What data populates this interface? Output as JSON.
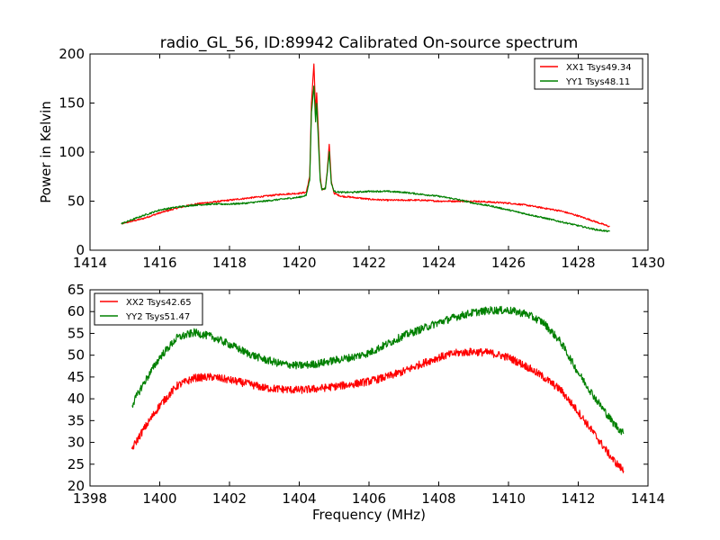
{
  "figure": {
    "title": "radio_GL_56, ID:89942 Calibrated On-source spectrum"
  },
  "colors": {
    "series1": "#ff0000",
    "series2": "#008000",
    "axes": "#000000",
    "background": "#ffffff"
  },
  "chart_data": [
    {
      "type": "line",
      "title": "radio_GL_56, ID:89942 Calibrated On-source spectrum",
      "xlabel": "",
      "ylabel": "Power in Kelvin",
      "xlim": [
        1414,
        1430
      ],
      "ylim": [
        0,
        200
      ],
      "xticks": [
        1414,
        1416,
        1418,
        1420,
        1422,
        1424,
        1426,
        1428,
        1430
      ],
      "yticks": [
        0,
        50,
        100,
        150,
        200
      ],
      "grid": false,
      "legend_position": "top-right",
      "series": [
        {
          "name": "XX1 Tsys49.34",
          "color": "#ff0000",
          "x": [
            1414.9,
            1415.5,
            1416,
            1416.5,
            1417,
            1417.5,
            1418,
            1418.5,
            1419,
            1419.5,
            1420,
            1420.2,
            1420.3,
            1420.35,
            1420.42,
            1420.47,
            1420.5,
            1420.55,
            1420.6,
            1420.65,
            1420.75,
            1420.8,
            1420.86,
            1420.92,
            1421,
            1421.2,
            1421.5,
            1422,
            1422.5,
            1423,
            1423.5,
            1424,
            1424.5,
            1425,
            1425.5,
            1426,
            1426.5,
            1427,
            1427.5,
            1428,
            1428.5,
            1428.9
          ],
          "y": [
            27,
            32,
            38,
            43,
            47,
            49,
            51,
            53,
            55,
            57,
            58,
            59,
            75,
            150,
            190,
            140,
            160,
            120,
            75,
            62,
            63,
            80,
            108,
            70,
            58,
            55,
            54,
            52,
            51,
            51,
            51,
            50,
            50,
            50,
            49,
            48,
            46,
            43,
            40,
            35,
            29,
            24
          ]
        },
        {
          "name": "YY1 Tsys48.11",
          "color": "#008000",
          "x": [
            1414.9,
            1415.5,
            1416,
            1416.5,
            1417,
            1417.5,
            1418,
            1418.5,
            1419,
            1419.5,
            1420,
            1420.2,
            1420.3,
            1420.35,
            1420.42,
            1420.47,
            1420.5,
            1420.55,
            1420.6,
            1420.65,
            1420.75,
            1420.8,
            1420.86,
            1420.92,
            1421,
            1421.2,
            1421.5,
            1422,
            1422.5,
            1423,
            1423.5,
            1424,
            1424.5,
            1425,
            1425.5,
            1426,
            1426.5,
            1427,
            1427.5,
            1428,
            1428.5,
            1428.9
          ],
          "y": [
            27,
            35,
            41,
            44,
            46,
            47,
            47,
            48,
            50,
            52,
            54,
            56,
            72,
            140,
            168,
            130,
            150,
            110,
            72,
            62,
            63,
            78,
            100,
            68,
            60,
            59,
            59,
            60,
            60,
            59,
            57,
            55,
            52,
            48,
            45,
            41,
            37,
            33,
            29,
            25,
            21,
            19
          ]
        }
      ]
    },
    {
      "type": "line",
      "title": "",
      "xlabel": "Frequency (MHz)",
      "ylabel": "",
      "xlim": [
        1398,
        1414
      ],
      "ylim": [
        20,
        65
      ],
      "xticks": [
        1398,
        1400,
        1402,
        1404,
        1406,
        1408,
        1410,
        1412,
        1414
      ],
      "yticks": [
        20,
        25,
        30,
        35,
        40,
        45,
        50,
        55,
        60,
        65
      ],
      "grid": false,
      "legend_position": "top-left",
      "series": [
        {
          "name": "XX2 Tsys42.65",
          "color": "#ff0000",
          "x": [
            1399.2,
            1399.5,
            1400,
            1400.5,
            1401,
            1401.5,
            1402,
            1402.5,
            1403,
            1403.5,
            1404,
            1404.5,
            1405,
            1405.5,
            1406,
            1406.5,
            1407,
            1407.5,
            1408,
            1408.5,
            1409,
            1409.5,
            1410,
            1410.5,
            1411,
            1411.5,
            1412,
            1412.5,
            1413,
            1413.3
          ],
          "y": [
            28.5,
            32.5,
            38.5,
            43,
            44.8,
            45,
            44.3,
            43.5,
            42.5,
            42.2,
            42,
            42.3,
            42.8,
            43.3,
            44,
            45,
            46.3,
            48,
            49.5,
            50.5,
            50.8,
            50.5,
            49.5,
            47.5,
            45,
            42,
            37,
            31.5,
            26,
            23.5
          ]
        },
        {
          "name": "YY2 Tsys51.47",
          "color": "#008000",
          "x": [
            1399.2,
            1399.5,
            1400,
            1400.5,
            1401,
            1401.5,
            1402,
            1402.5,
            1403,
            1403.5,
            1404,
            1404.5,
            1405,
            1405.5,
            1406,
            1406.5,
            1407,
            1407.5,
            1408,
            1408.5,
            1409,
            1409.5,
            1410,
            1410.5,
            1411,
            1411.5,
            1412,
            1412.5,
            1413,
            1413.3
          ],
          "y": [
            38.5,
            43,
            49.5,
            54,
            55.2,
            54.2,
            52.5,
            50.5,
            49,
            48,
            47.6,
            48,
            48.8,
            49.5,
            50.5,
            52.5,
            54.5,
            56,
            57.5,
            58.8,
            59.8,
            60.3,
            60.3,
            59.5,
            57.5,
            53,
            46,
            40,
            34.5,
            32
          ]
        }
      ]
    }
  ]
}
